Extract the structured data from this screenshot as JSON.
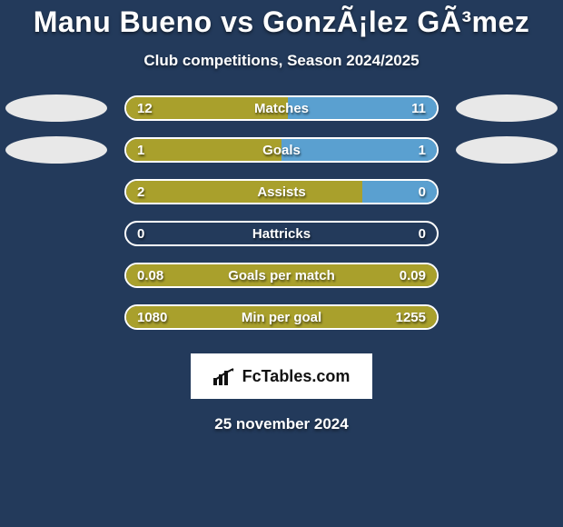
{
  "title": "Manu Bueno vs GonzÃ¡lez GÃ³mez",
  "subtitle": "Club competitions, Season 2024/2025",
  "date": "25 november 2024",
  "logo_text": "FcTables.com",
  "colors": {
    "background": "#233a5b",
    "bar_border": "#ffffff",
    "player1_bar": "#a9a02c",
    "player2_bar": "#5aa0d0",
    "oval_bg": "#e8e8e8",
    "text": "#ffffff"
  },
  "stats": [
    {
      "label": "Matches",
      "v1": "12",
      "v2": "11",
      "p1_pct": 52,
      "p2_pct": 48,
      "show_ovals": true
    },
    {
      "label": "Goals",
      "v1": "1",
      "v2": "1",
      "p1_pct": 50,
      "p2_pct": 50,
      "show_ovals": true
    },
    {
      "label": "Assists",
      "v1": "2",
      "v2": "0",
      "p1_pct": 76,
      "p2_pct": 24,
      "show_ovals": false
    },
    {
      "label": "Hattricks",
      "v1": "0",
      "v2": "0",
      "p1_pct": 0,
      "p2_pct": 0,
      "show_ovals": false
    },
    {
      "label": "Goals per match",
      "v1": "0.08",
      "v2": "0.09",
      "p1_pct": 100,
      "p2_pct": 0,
      "show_ovals": false
    },
    {
      "label": "Min per goal",
      "v1": "1080",
      "v2": "1255",
      "p1_pct": 100,
      "p2_pct": 0,
      "show_ovals": false
    }
  ]
}
